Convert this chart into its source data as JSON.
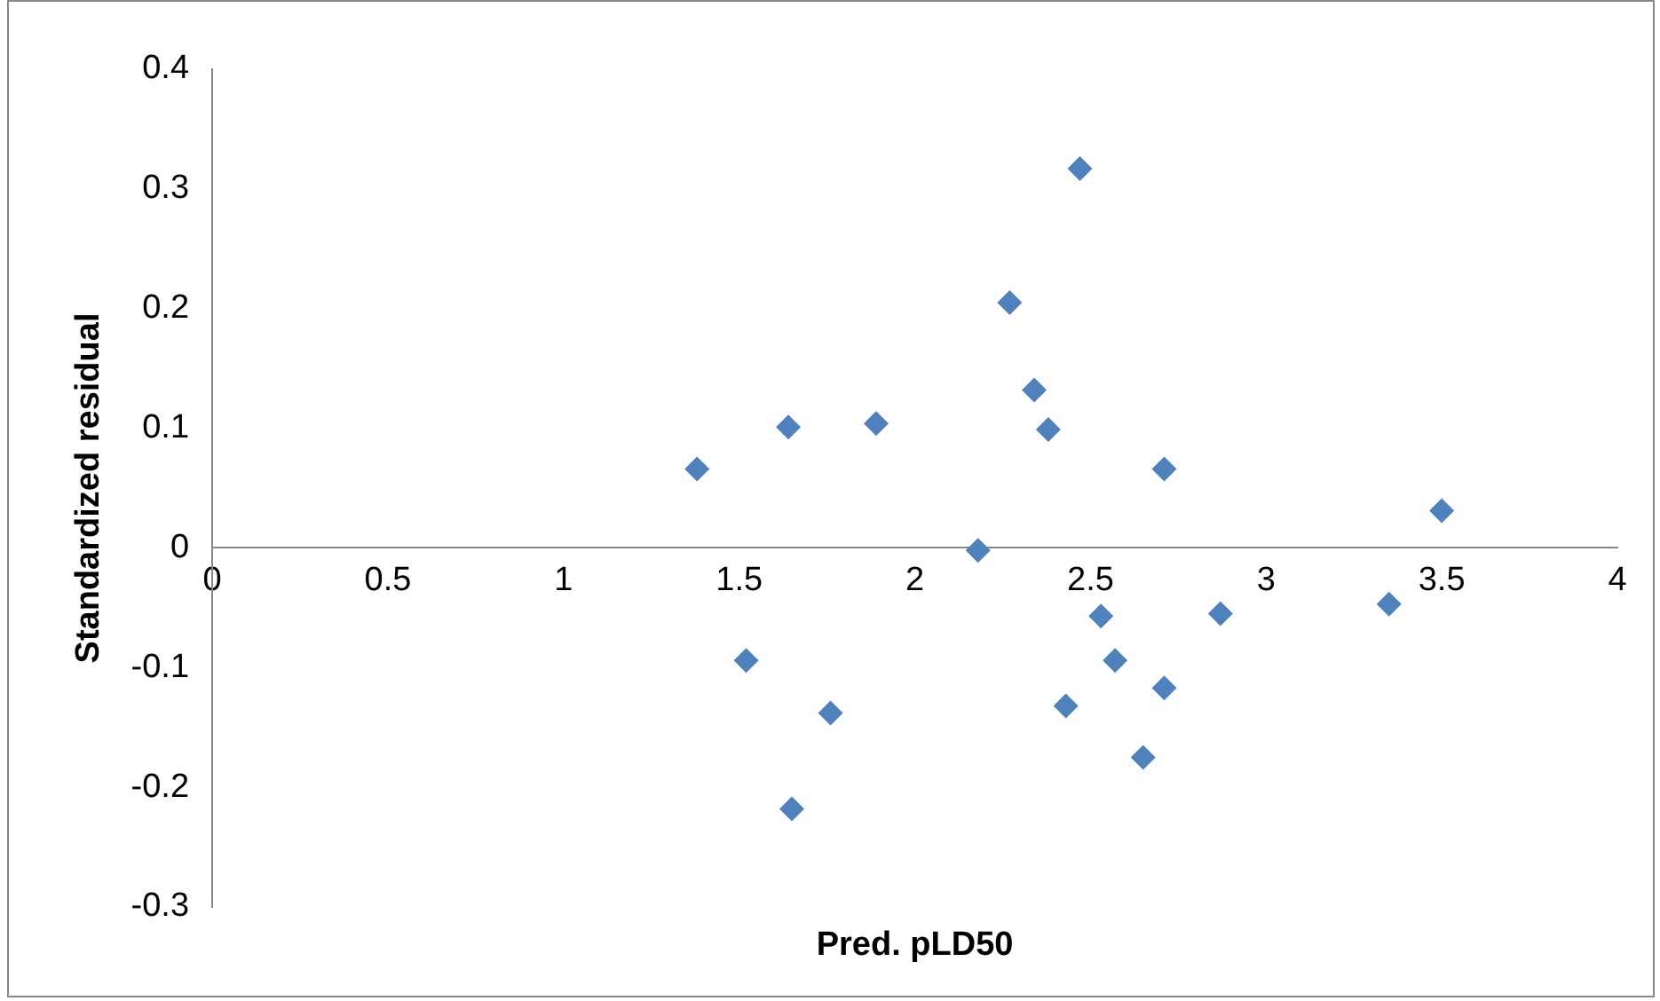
{
  "chart_data": {
    "type": "scatter",
    "xlabel": "Pred. pLD50",
    "ylabel": "Standardized residual",
    "marker": "diamond",
    "grid": false,
    "legend": false,
    "xlim": [
      0,
      4
    ],
    "xticks": [
      0,
      0.5,
      1,
      1.5,
      2,
      2.5,
      3,
      3.5,
      4
    ],
    "ylim": [
      -0.3,
      0.4
    ],
    "yticks": [
      -0.3,
      -0.2,
      -0.1,
      0,
      0.1,
      0.2,
      0.3,
      0.4
    ],
    "series": [
      {
        "color": "#4f81bd",
        "x": [
          1.38,
          1.64,
          1.89,
          2.27,
          2.47,
          2.34,
          2.38,
          2.71,
          3.5,
          2.18,
          1.52,
          1.76,
          1.65,
          2.43,
          2.57,
          2.53,
          2.71,
          2.65,
          2.87,
          3.35
        ],
        "values": [
          0.066,
          0.101,
          0.104,
          0.205,
          0.317,
          0.132,
          0.099,
          0.066,
          0.031,
          -0.002,
          -0.094,
          -0.138,
          -0.218,
          -0.132,
          -0.094,
          -0.057,
          -0.117,
          -0.175,
          -0.055,
          -0.047
        ]
      }
    ]
  }
}
